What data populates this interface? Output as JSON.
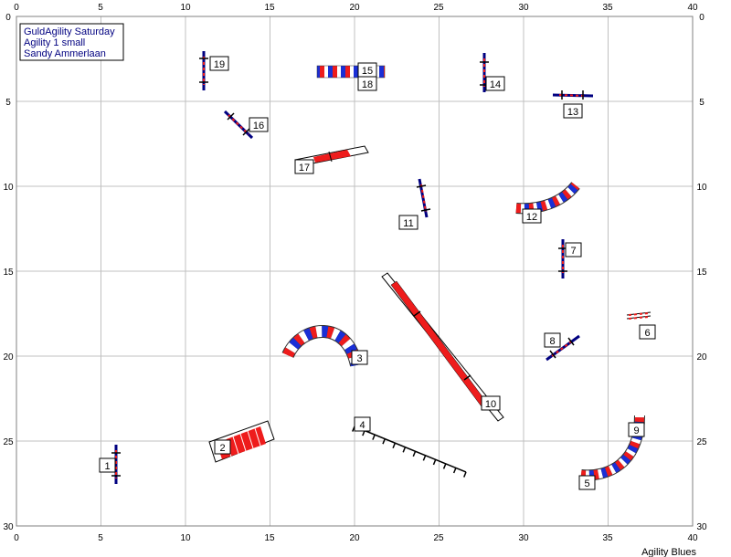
{
  "course": {
    "info_lines": [
      "GuldAgility Saturday",
      "Agility 1 small",
      "Sandy Ammerlaan"
    ],
    "brand": "Agility Blues",
    "x_ticks": [
      "0",
      "5",
      "10",
      "15",
      "20",
      "25",
      "30",
      "35",
      "40"
    ],
    "y_ticks": [
      "0",
      "5",
      "10",
      "15",
      "20",
      "25",
      "30"
    ]
  },
  "colors": {
    "red": "#ee1c1c",
    "blue": "#1a2fd6",
    "navy": "#000080",
    "grid": "#c0c0c0"
  },
  "obstacles": [
    {
      "number": "1",
      "type": "jump"
    },
    {
      "number": "2",
      "type": "tire-or-chute"
    },
    {
      "number": "3",
      "type": "tunnel"
    },
    {
      "number": "4",
      "type": "weave-poles"
    },
    {
      "number": "5",
      "type": "tunnel"
    },
    {
      "number": "6",
      "type": "jump"
    },
    {
      "number": "7",
      "type": "jump"
    },
    {
      "number": "8",
      "type": "jump"
    },
    {
      "number": "9",
      "type": "tunnel"
    },
    {
      "number": "10",
      "type": "dog-walk"
    },
    {
      "number": "11",
      "type": "jump"
    },
    {
      "number": "12",
      "type": "tunnel"
    },
    {
      "number": "13",
      "type": "jump"
    },
    {
      "number": "14",
      "type": "jump"
    },
    {
      "number": "15",
      "type": "tunnel"
    },
    {
      "number": "16",
      "type": "jump"
    },
    {
      "number": "17",
      "type": "seesaw"
    },
    {
      "number": "18",
      "type": "tunnel"
    },
    {
      "number": "19",
      "type": "jump"
    }
  ]
}
